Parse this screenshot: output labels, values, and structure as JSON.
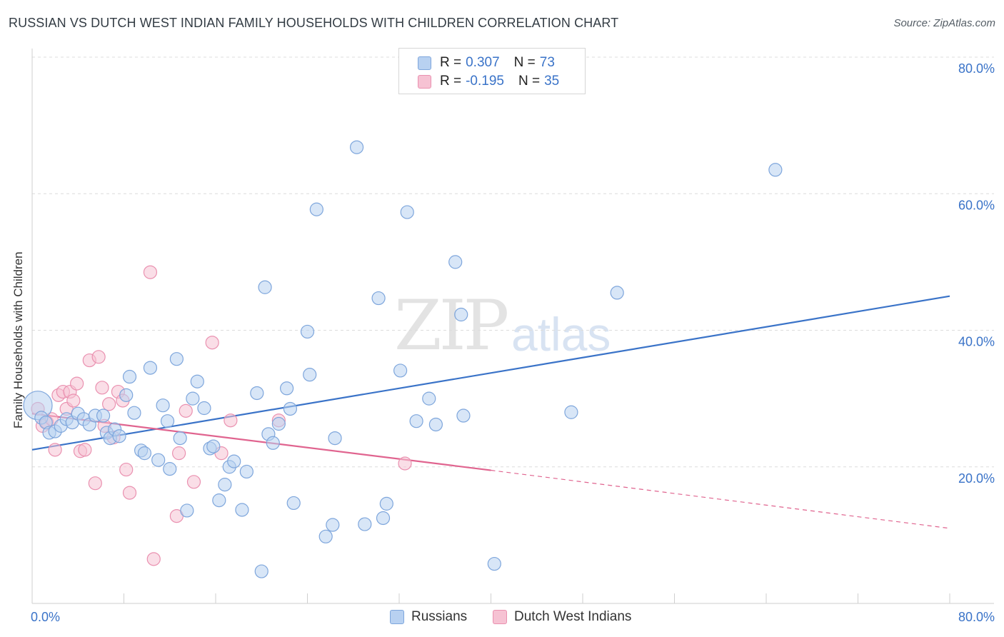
{
  "title": "RUSSIAN VS DUTCH WEST INDIAN FAMILY HOUSEHOLDS WITH CHILDREN CORRELATION CHART",
  "source": "Source: ZipAtlas.com",
  "watermark": {
    "zip": "ZIP",
    "atlas": "atlas"
  },
  "legend": {
    "russians": {
      "r_label": "R =",
      "r_value": "0.307",
      "n_label": "N =",
      "n_value": "73"
    },
    "dutch": {
      "r_label": "R =",
      "r_value": "-0.195",
      "n_label": "N =",
      "n_value": "35"
    }
  },
  "colors": {
    "blue_fill": "#b8d1f1",
    "blue_stroke": "#7ea6dc",
    "blue_line": "#3a73c8",
    "pink_fill": "#f6c2d3",
    "pink_stroke": "#ea91b0",
    "pink_line": "#e0648f",
    "tick_label": "#3a73c8",
    "grid": "#dcdcdc"
  },
  "chart_data": {
    "type": "scatter",
    "title": "RUSSIAN VS DUTCH WEST INDIAN FAMILY HOUSEHOLDS WITH CHILDREN CORRELATION CHART",
    "xlabel": "",
    "ylabel": "Family Households with Children",
    "xlim": [
      0,
      80
    ],
    "ylim": [
      0,
      80
    ],
    "x_tick_labels": [
      "0.0%",
      "80.0%"
    ],
    "y_tick_labels": [
      "20.0%",
      "40.0%",
      "60.0%",
      "80.0%"
    ],
    "y_ticks": [
      20,
      40,
      60,
      80
    ],
    "grid": true,
    "legend_position": "top-center",
    "series": [
      {
        "name": "Russians",
        "color": "#b8d1f1",
        "points": [
          [
            0.5,
            29.0
          ],
          [
            0.8,
            27.2
          ],
          [
            1.2,
            26.5
          ],
          [
            1.5,
            25.0
          ],
          [
            2.0,
            25.2
          ],
          [
            2.5,
            26.0
          ],
          [
            3.0,
            27.0
          ],
          [
            3.5,
            26.5
          ],
          [
            4.0,
            27.8
          ],
          [
            4.5,
            27.0
          ],
          [
            5.0,
            26.2
          ],
          [
            5.5,
            27.5
          ],
          [
            6.2,
            27.5
          ],
          [
            6.5,
            25.0
          ],
          [
            6.8,
            24.2
          ],
          [
            7.2,
            25.5
          ],
          [
            7.6,
            24.5
          ],
          [
            8.2,
            30.5
          ],
          [
            8.5,
            33.2
          ],
          [
            8.9,
            27.9
          ],
          [
            9.5,
            22.4
          ],
          [
            9.8,
            22.0
          ],
          [
            10.3,
            34.5
          ],
          [
            11.0,
            21.0
          ],
          [
            11.4,
            29.0
          ],
          [
            11.8,
            26.7
          ],
          [
            12.0,
            19.7
          ],
          [
            12.6,
            35.8
          ],
          [
            12.9,
            24.2
          ],
          [
            13.5,
            13.6
          ],
          [
            14.0,
            30.0
          ],
          [
            14.4,
            32.5
          ],
          [
            15.0,
            28.6
          ],
          [
            15.5,
            22.7
          ],
          [
            15.8,
            23.0
          ],
          [
            16.3,
            15.1
          ],
          [
            16.8,
            17.4
          ],
          [
            17.2,
            20.0
          ],
          [
            17.6,
            20.8
          ],
          [
            18.3,
            13.7
          ],
          [
            18.7,
            19.3
          ],
          [
            19.6,
            30.8
          ],
          [
            20.0,
            4.7
          ],
          [
            20.3,
            46.3
          ],
          [
            20.6,
            24.8
          ],
          [
            21.0,
            23.5
          ],
          [
            21.5,
            26.3
          ],
          [
            22.2,
            31.5
          ],
          [
            22.5,
            28.5
          ],
          [
            22.8,
            14.7
          ],
          [
            24.0,
            39.8
          ],
          [
            24.2,
            33.5
          ],
          [
            24.8,
            57.7
          ],
          [
            25.6,
            9.8
          ],
          [
            26.2,
            11.5
          ],
          [
            26.4,
            24.2
          ],
          [
            28.3,
            66.8
          ],
          [
            29.0,
            11.6
          ],
          [
            30.2,
            44.7
          ],
          [
            30.6,
            12.5
          ],
          [
            30.9,
            14.6
          ],
          [
            32.1,
            34.1
          ],
          [
            32.7,
            57.3
          ],
          [
            33.5,
            26.7
          ],
          [
            34.6,
            30.0
          ],
          [
            35.2,
            26.2
          ],
          [
            36.9,
            50.0
          ],
          [
            37.4,
            42.3
          ],
          [
            37.6,
            27.5
          ],
          [
            40.3,
            5.8
          ],
          [
            47.0,
            28.0
          ],
          [
            51.0,
            45.5
          ],
          [
            64.8,
            63.5
          ]
        ]
      },
      {
        "name": "Dutch West Indians",
        "color": "#f6c2d3",
        "points": [
          [
            0.5,
            28.5
          ],
          [
            0.9,
            26.0
          ],
          [
            1.3,
            26.5
          ],
          [
            1.7,
            27.0
          ],
          [
            2.0,
            22.5
          ],
          [
            2.3,
            30.5
          ],
          [
            2.7,
            31.0
          ],
          [
            3.0,
            28.5
          ],
          [
            3.3,
            31.0
          ],
          [
            3.6,
            29.7
          ],
          [
            3.9,
            32.2
          ],
          [
            4.2,
            22.3
          ],
          [
            4.6,
            22.5
          ],
          [
            5.0,
            35.6
          ],
          [
            5.5,
            17.6
          ],
          [
            5.8,
            36.1
          ],
          [
            6.1,
            31.6
          ],
          [
            6.3,
            26.0
          ],
          [
            6.7,
            29.2
          ],
          [
            7.1,
            24.3
          ],
          [
            7.5,
            31.0
          ],
          [
            7.9,
            29.7
          ],
          [
            8.2,
            19.6
          ],
          [
            8.5,
            16.2
          ],
          [
            10.3,
            48.5
          ],
          [
            10.6,
            6.5
          ],
          [
            12.6,
            12.8
          ],
          [
            12.8,
            22.0
          ],
          [
            13.4,
            28.2
          ],
          [
            14.1,
            17.8
          ],
          [
            15.7,
            38.2
          ],
          [
            16.5,
            22.0
          ],
          [
            17.3,
            26.8
          ],
          [
            21.5,
            26.8
          ],
          [
            32.5,
            20.5
          ]
        ]
      }
    ],
    "trendlines": [
      {
        "series": "Russians",
        "x": [
          0,
          80
        ],
        "y": [
          22.5,
          45.0
        ],
        "style": "solid"
      },
      {
        "series": "Dutch West Indians",
        "x": [
          0,
          40
        ],
        "y": [
          27.8,
          19.5
        ],
        "style": "solid"
      },
      {
        "series": "Dutch West Indians",
        "x": [
          40,
          80
        ],
        "y": [
          19.5,
          11.0
        ],
        "style": "dashed"
      }
    ]
  }
}
